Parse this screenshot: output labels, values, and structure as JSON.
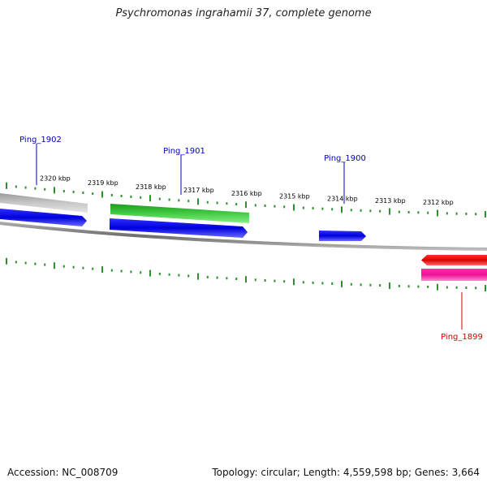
{
  "title": "Psychromonas ingrahamii 37, complete genome",
  "footer": {
    "accession": "Accession: NC_008709",
    "summary": "Topology: circular; Length: 4,559,598 bp; Genes: 3,664"
  },
  "scale": {
    "labels": [
      "2320 kbp",
      "2319 kbp",
      "2318 kbp",
      "2317 kbp",
      "2316 kbp",
      "2315 kbp",
      "2314 kbp",
      "2313 kbp",
      "2312 kbp"
    ]
  },
  "genes": [
    {
      "name": "Ping_1902",
      "color": "#0000bb"
    },
    {
      "name": "Ping_1901",
      "color": "#0000bb"
    },
    {
      "name": "Ping_1900",
      "color": "#0000bb"
    },
    {
      "name": "Ping_1899",
      "color": "#cc0000"
    }
  ],
  "colors": {
    "backbone": "#8a8a8a",
    "tick": "#2f8f2f",
    "feature_blue": "#0000e0",
    "feature_green": "#33bb33",
    "feature_grey": "#c0c0c0",
    "feature_red": "#ee0000",
    "feature_pink": "#ee1199"
  }
}
